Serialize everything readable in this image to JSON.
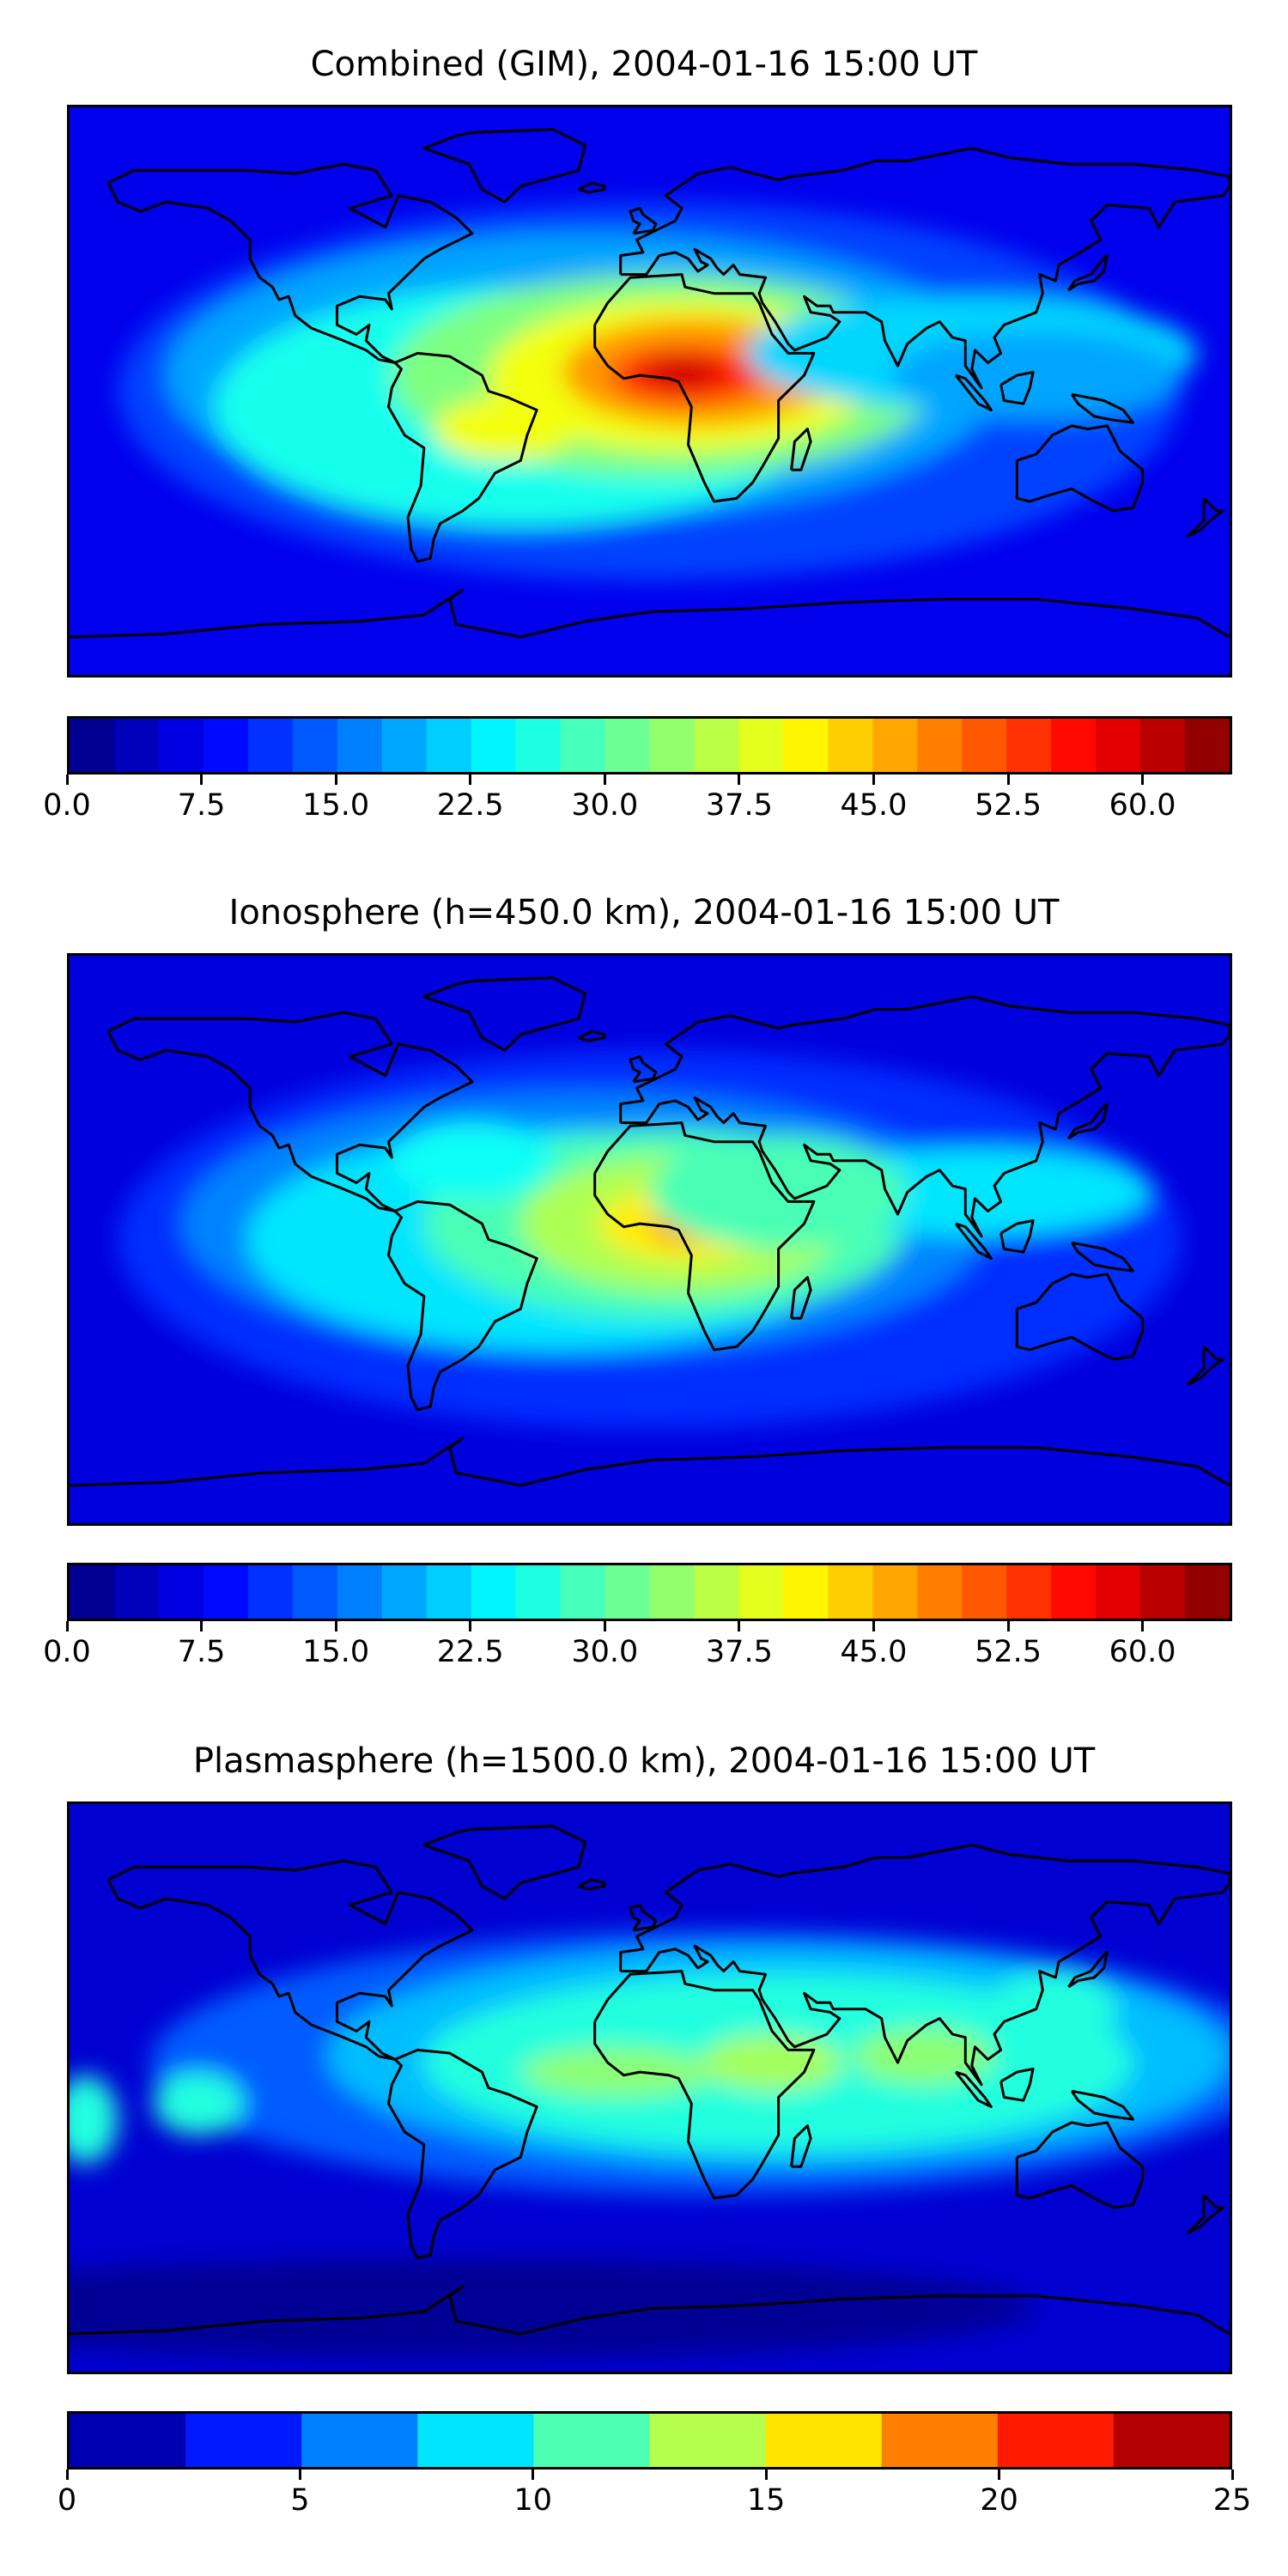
{
  "chart_data": [
    {
      "type": "heatmap",
      "map": "world-contour",
      "title": "Combined (GIM), 2004-01-16 15:00 UT",
      "colorbar": {
        "min": 0,
        "max": 65,
        "levels": 26,
        "ticks": [
          0.0,
          7.5,
          15.0,
          22.5,
          30.0,
          37.5,
          45.0,
          52.5,
          60.0
        ],
        "tick_labels": [
          "0.0",
          "7.5",
          "15.0",
          "22.5",
          "30.0",
          "37.5",
          "45.0",
          "52.5",
          "60.0"
        ]
      },
      "peak": {
        "lon": 10,
        "lat": 5,
        "value": 60
      },
      "background": 7
    },
    {
      "type": "heatmap",
      "map": "world-contour",
      "title": "Ionosphere  (h=450.0 km), 2004-01-16 15:00 UT",
      "colorbar": {
        "min": 0,
        "max": 65,
        "levels": 26,
        "ticks": [
          0.0,
          7.5,
          15.0,
          22.5,
          30.0,
          37.5,
          45.0,
          52.5,
          60.0
        ],
        "tick_labels": [
          "0.0",
          "7.5",
          "15.0",
          "22.5",
          "30.0",
          "37.5",
          "45.0",
          "52.5",
          "60.0"
        ]
      },
      "peak": {
        "lon": 10,
        "lat": 5,
        "value": 48
      },
      "background": 6
    },
    {
      "type": "heatmap",
      "map": "world-contour",
      "title": "Plasmasphere (h=1500.0 km), 2004-01-16 15:00 UT",
      "colorbar": {
        "min": 0,
        "max": 25,
        "levels": 10,
        "ticks": [
          0,
          5,
          10,
          15,
          20,
          25
        ],
        "tick_labels": [
          "0",
          "5",
          "10",
          "15",
          "20",
          "25"
        ]
      },
      "peak": {
        "lon": 30,
        "lat": 5,
        "value": 14
      },
      "background": 2
    }
  ]
}
